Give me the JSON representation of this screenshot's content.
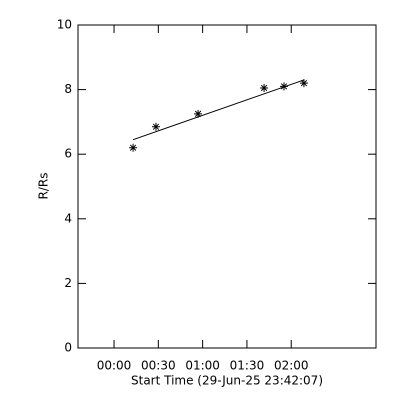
{
  "chart_data": {
    "type": "scatter",
    "x_label": "Start Time (29-Jun-25 23:42:07)",
    "y_label": "R/Rs",
    "x": [
      12.9,
      28.4,
      56.9,
      101.6,
      115.1,
      128.6
    ],
    "values": [
      6.2,
      6.85,
      7.25,
      8.05,
      8.1,
      8.2
    ],
    "color": "#000000",
    "fit": {
      "x": [
        12.9,
        128.6
      ],
      "values": [
        6.45,
        8.3
      ]
    },
    "xlim": [
      -24.4,
      177.4
    ],
    "xticks": [
      {
        "value": 0,
        "label": "00:00"
      },
      {
        "value": 30,
        "label": "00:30"
      },
      {
        "value": 60,
        "label": "01:00"
      },
      {
        "value": 90,
        "label": "01:30"
      },
      {
        "value": 120,
        "label": "02:00"
      }
    ],
    "ylim": [
      0,
      10
    ],
    "yticks": [
      0,
      2,
      4,
      6,
      8,
      10
    ]
  }
}
